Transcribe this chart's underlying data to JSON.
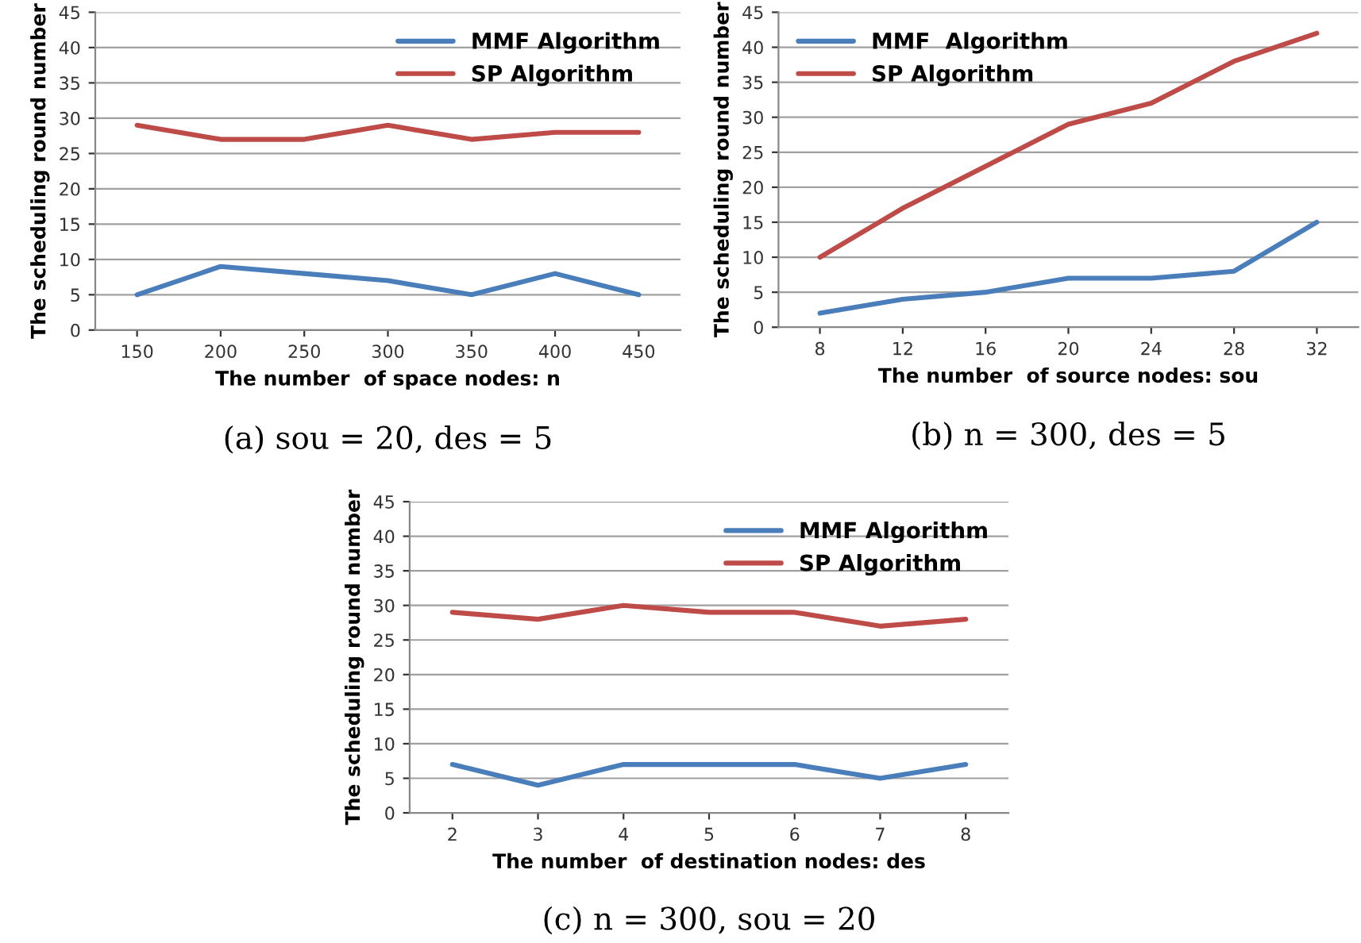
{
  "chart_data": [
    {
      "type": "line",
      "categories": [
        "150",
        "200",
        "250",
        "300",
        "350",
        "400",
        "450"
      ],
      "ylabel": "The scheduling round number",
      "xlabel": "The number  of space nodes: n",
      "ylim": [
        0,
        45
      ],
      "yticks": [
        0,
        5,
        10,
        15,
        20,
        25,
        30,
        35,
        40,
        45
      ],
      "grid": "y",
      "legend": "top right",
      "marker": "none",
      "line_style": "solid",
      "annotations": [
        "(a) sou = 20, des = 5"
      ],
      "series": [
        {
          "name": "MMF Algorithm",
          "color": "#4a7ebb",
          "values": [
            5,
            9,
            8,
            7,
            5,
            8,
            5
          ]
        },
        {
          "name": "SP Algorithm",
          "color": "#be4b48",
          "values": [
            29,
            27,
            27,
            29,
            27,
            28,
            28
          ]
        }
      ]
    },
    {
      "type": "line",
      "categories": [
        "8",
        "12",
        "16",
        "20",
        "24",
        "28",
        "32"
      ],
      "ylabel": "The scheduling round number",
      "xlabel": "The number  of source nodes: sou",
      "ylim": [
        0,
        45
      ],
      "yticks": [
        0,
        5,
        10,
        15,
        20,
        25,
        30,
        35,
        40,
        45
      ],
      "grid": "y",
      "legend": "top left",
      "marker": "none",
      "line_style": "solid",
      "annotations": [
        "(b) n = 300, des = 5"
      ],
      "series": [
        {
          "name": "MMF  Algorithm",
          "color": "#4a7ebb",
          "values": [
            2,
            4,
            5,
            7,
            7,
            8,
            15
          ]
        },
        {
          "name": "SP Algorithm",
          "color": "#be4b48",
          "values": [
            10,
            17,
            23,
            29,
            32,
            38,
            42
          ]
        }
      ]
    },
    {
      "type": "line",
      "categories": [
        "2",
        "3",
        "4",
        "5",
        "6",
        "7",
        "8"
      ],
      "ylabel": "The scheduling round number",
      "xlabel": "The number  of destination nodes: des",
      "ylim": [
        0,
        45
      ],
      "yticks": [
        0,
        5,
        10,
        15,
        20,
        25,
        30,
        35,
        40,
        45
      ],
      "grid": "y",
      "legend": "top right",
      "marker": "none",
      "line_style": "solid",
      "annotations": [
        "(c) n = 300, sou = 20"
      ],
      "series": [
        {
          "name": "MMF Algorithm",
          "color": "#4a7ebb",
          "values": [
            7,
            4,
            7,
            7,
            7,
            5,
            7
          ]
        },
        {
          "name": "SP Algorithm",
          "color": "#be4b48",
          "values": [
            29,
            28,
            30,
            29,
            29,
            27,
            28
          ]
        }
      ]
    }
  ]
}
